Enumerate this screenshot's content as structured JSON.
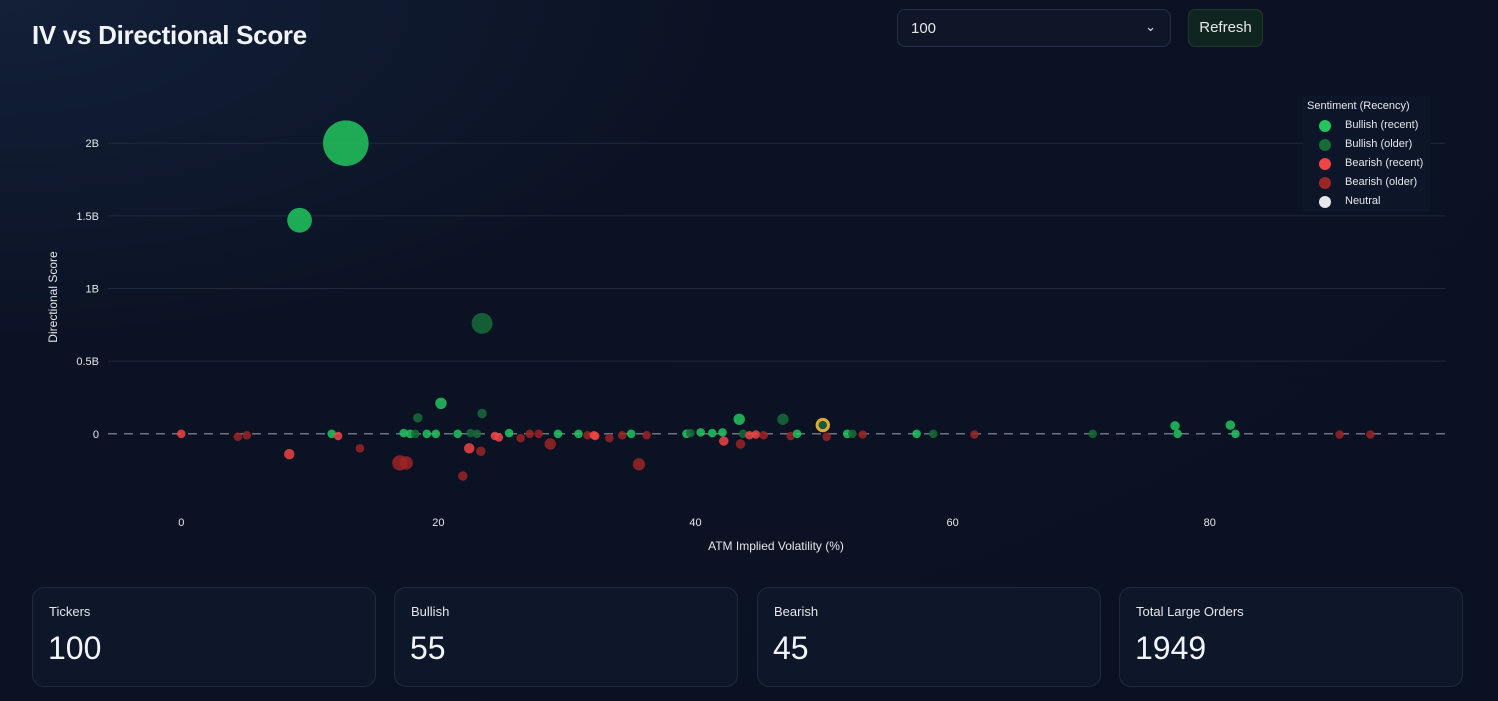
{
  "header": {
    "title": "IV vs Directional Score",
    "select_value": "100",
    "refresh_label": "Refresh"
  },
  "colors": {
    "bullish_recent": "#22c55e",
    "bullish_older": "#176b37",
    "bearish_recent": "#ef4444",
    "bearish_older": "#9b2424",
    "neutral": "#e5e7eb",
    "highlight_ring": "#e0a83a"
  },
  "chart_data": {
    "type": "scatter",
    "xlabel": "ATM Implied Volatility (%)",
    "ylabel": "Directional Score",
    "xlim": [
      -5.7,
      98.3
    ],
    "ylim": [
      -490000000,
      2380000000
    ],
    "xticks": [
      {
        "v": 0,
        "label": "0"
      },
      {
        "v": 20,
        "label": "20"
      },
      {
        "v": 40,
        "label": "40"
      },
      {
        "v": 60,
        "label": "60"
      },
      {
        "v": 80,
        "label": "80"
      }
    ],
    "yticks": [
      {
        "v": 0,
        "label": "0"
      },
      {
        "v": 500000000,
        "label": "0.5B"
      },
      {
        "v": 1000000000,
        "label": "1B"
      },
      {
        "v": 1500000000,
        "label": "1.5B"
      },
      {
        "v": 2000000000,
        "label": "2B"
      }
    ],
    "grid": true,
    "zero_line": "dashed",
    "legend": {
      "title": "Sentiment (Recency)",
      "placement": "top-right",
      "entries": [
        {
          "key": "bullish_recent",
          "label": "Bullish (recent)"
        },
        {
          "key": "bullish_older",
          "label": "Bullish (older)"
        },
        {
          "key": "bearish_recent",
          "label": "Bearish (recent)"
        },
        {
          "key": "bearish_older",
          "label": "Bearish (older)"
        },
        {
          "key": "neutral",
          "label": "Neutral"
        }
      ]
    },
    "points": [
      {
        "x": 12.8,
        "y": 2000000000,
        "size": 24,
        "cat": "bullish_recent"
      },
      {
        "x": 9.2,
        "y": 1470000000,
        "size": 13,
        "cat": "bullish_recent"
      },
      {
        "x": 23.4,
        "y": 760000000,
        "size": 11,
        "cat": "bullish_older"
      },
      {
        "x": 20.2,
        "y": 210000000,
        "size": 6,
        "cat": "bullish_recent"
      },
      {
        "x": 18.4,
        "y": 110000000,
        "size": 5,
        "cat": "bullish_older"
      },
      {
        "x": 23.4,
        "y": 140000000,
        "size": 5,
        "cat": "bullish_older"
      },
      {
        "x": 43.4,
        "y": 100000000,
        "size": 6,
        "cat": "bullish_recent"
      },
      {
        "x": 46.8,
        "y": 100000000,
        "size": 6,
        "cat": "bullish_older"
      },
      {
        "x": 49.9,
        "y": 60000000,
        "size": 6,
        "cat": "bullish_older",
        "highlight": true
      },
      {
        "x": 77.3,
        "y": 55000000,
        "size": 5,
        "cat": "bullish_recent"
      },
      {
        "x": 81.6,
        "y": 60000000,
        "size": 5,
        "cat": "bullish_recent"
      },
      {
        "x": 8.4,
        "y": -140000000,
        "size": 5.5,
        "cat": "bearish_recent"
      },
      {
        "x": 13.9,
        "y": -100000000,
        "size": 4.5,
        "cat": "bearish_older"
      },
      {
        "x": 17.0,
        "y": -200000000,
        "size": 8,
        "cat": "bearish_older"
      },
      {
        "x": 17.5,
        "y": -200000000,
        "size": 7,
        "cat": "bearish_older"
      },
      {
        "x": 21.9,
        "y": -290000000,
        "size": 5,
        "cat": "bearish_older"
      },
      {
        "x": 22.4,
        "y": -100000000,
        "size": 5.5,
        "cat": "bearish_recent"
      },
      {
        "x": 23.3,
        "y": -120000000,
        "size": 5,
        "cat": "bearish_older"
      },
      {
        "x": 28.7,
        "y": -70000000,
        "size": 6,
        "cat": "bearish_older"
      },
      {
        "x": 35.6,
        "y": -210000000,
        "size": 6.5,
        "cat": "bearish_older"
      },
      {
        "x": 42.2,
        "y": -50000000,
        "size": 5,
        "cat": "bearish_recent"
      },
      {
        "x": 43.5,
        "y": -70000000,
        "size": 5,
        "cat": "bearish_older"
      },
      {
        "x": 50.2,
        "y": -20000000,
        "size": 4.5,
        "cat": "bearish_older"
      },
      {
        "x": 0,
        "y": 0,
        "size": 4.5,
        "cat": "bearish_recent"
      },
      {
        "x": 4.4,
        "y": -20000000,
        "size": 4.5,
        "cat": "bearish_older"
      },
      {
        "x": 5.1,
        "y": -10000000,
        "size": 4.5,
        "cat": "bearish_older"
      },
      {
        "x": 11.7,
        "y": 0,
        "size": 4.5,
        "cat": "bullish_recent"
      },
      {
        "x": 12.2,
        "y": -15000000,
        "size": 4.5,
        "cat": "bearish_recent"
      },
      {
        "x": 17.3,
        "y": 5000000,
        "size": 4.5,
        "cat": "bullish_recent"
      },
      {
        "x": 17.8,
        "y": 0,
        "size": 4.5,
        "cat": "bullish_recent"
      },
      {
        "x": 18.2,
        "y": 0,
        "size": 4.5,
        "cat": "bullish_older"
      },
      {
        "x": 19.1,
        "y": 0,
        "size": 4.5,
        "cat": "bullish_recent"
      },
      {
        "x": 19.8,
        "y": 0,
        "size": 4.5,
        "cat": "bullish_recent"
      },
      {
        "x": 21.5,
        "y": 0,
        "size": 4.5,
        "cat": "bullish_recent"
      },
      {
        "x": 22.5,
        "y": 5000000,
        "size": 4.5,
        "cat": "bullish_older"
      },
      {
        "x": 23.0,
        "y": 0,
        "size": 4.5,
        "cat": "bullish_older"
      },
      {
        "x": 24.4,
        "y": -15000000,
        "size": 4.5,
        "cat": "bearish_recent"
      },
      {
        "x": 24.7,
        "y": -25000000,
        "size": 4.5,
        "cat": "bearish_recent"
      },
      {
        "x": 25.5,
        "y": 5000000,
        "size": 4.5,
        "cat": "bullish_recent"
      },
      {
        "x": 26.4,
        "y": -30000000,
        "size": 4.5,
        "cat": "bearish_older"
      },
      {
        "x": 27.1,
        "y": 0,
        "size": 4.5,
        "cat": "bearish_older"
      },
      {
        "x": 27.8,
        "y": 0,
        "size": 4.5,
        "cat": "bearish_older"
      },
      {
        "x": 29.3,
        "y": 0,
        "size": 4.5,
        "cat": "bullish_recent"
      },
      {
        "x": 30.9,
        "y": 0,
        "size": 4.5,
        "cat": "bullish_recent"
      },
      {
        "x": 31.6,
        "y": -10000000,
        "size": 4.5,
        "cat": "bearish_older"
      },
      {
        "x": 32.1,
        "y": -10000000,
        "size": 4.5,
        "cat": "bearish_recent"
      },
      {
        "x": 32.2,
        "y": -15000000,
        "size": 4.5,
        "cat": "bearish_recent"
      },
      {
        "x": 33.3,
        "y": -30000000,
        "size": 4.5,
        "cat": "bearish_older"
      },
      {
        "x": 34.3,
        "y": -10000000,
        "size": 4.5,
        "cat": "bearish_older"
      },
      {
        "x": 35.0,
        "y": 0,
        "size": 4.5,
        "cat": "bullish_recent"
      },
      {
        "x": 36.2,
        "y": -10000000,
        "size": 4.5,
        "cat": "bearish_older"
      },
      {
        "x": 39.3,
        "y": 0,
        "size": 4.5,
        "cat": "bullish_recent"
      },
      {
        "x": 39.6,
        "y": 5000000,
        "size": 4.5,
        "cat": "bullish_older"
      },
      {
        "x": 40.4,
        "y": 10000000,
        "size": 4.5,
        "cat": "bullish_recent"
      },
      {
        "x": 41.3,
        "y": 5000000,
        "size": 4.5,
        "cat": "bullish_recent"
      },
      {
        "x": 42.1,
        "y": 10000000,
        "size": 4.5,
        "cat": "bullish_recent"
      },
      {
        "x": 43.7,
        "y": 0,
        "size": 4.5,
        "cat": "bullish_older"
      },
      {
        "x": 44.2,
        "y": -10000000,
        "size": 4.5,
        "cat": "bearish_recent"
      },
      {
        "x": 44.7,
        "y": -5000000,
        "size": 4.5,
        "cat": "bearish_recent"
      },
      {
        "x": 45.3,
        "y": -10000000,
        "size": 4.5,
        "cat": "bearish_older"
      },
      {
        "x": 47.4,
        "y": -15000000,
        "size": 4.5,
        "cat": "bearish_older"
      },
      {
        "x": 47.9,
        "y": 0,
        "size": 4.5,
        "cat": "bullish_recent"
      },
      {
        "x": 51.8,
        "y": 0,
        "size": 4.5,
        "cat": "bullish_recent"
      },
      {
        "x": 52.2,
        "y": 0,
        "size": 4.5,
        "cat": "bullish_older"
      },
      {
        "x": 53.0,
        "y": -5000000,
        "size": 4.5,
        "cat": "bearish_older"
      },
      {
        "x": 57.2,
        "y": 0,
        "size": 4.5,
        "cat": "bullish_recent"
      },
      {
        "x": 58.5,
        "y": 0,
        "size": 4.5,
        "cat": "bullish_older"
      },
      {
        "x": 61.7,
        "y": -5000000,
        "size": 4.5,
        "cat": "bearish_older"
      },
      {
        "x": 70.9,
        "y": 0,
        "size": 4.5,
        "cat": "bullish_older"
      },
      {
        "x": 77.5,
        "y": 0,
        "size": 4.5,
        "cat": "bullish_recent"
      },
      {
        "x": 82.0,
        "y": 0,
        "size": 4.5,
        "cat": "bullish_recent"
      },
      {
        "x": 90.1,
        "y": -5000000,
        "size": 4.5,
        "cat": "bearish_older"
      },
      {
        "x": 92.5,
        "y": -5000000,
        "size": 4.5,
        "cat": "bearish_older"
      }
    ]
  },
  "stats": [
    {
      "label": "Tickers",
      "value": "100"
    },
    {
      "label": "Bullish",
      "value": "55"
    },
    {
      "label": "Bearish",
      "value": "45"
    },
    {
      "label": "Total Large Orders",
      "value": "1949"
    }
  ]
}
